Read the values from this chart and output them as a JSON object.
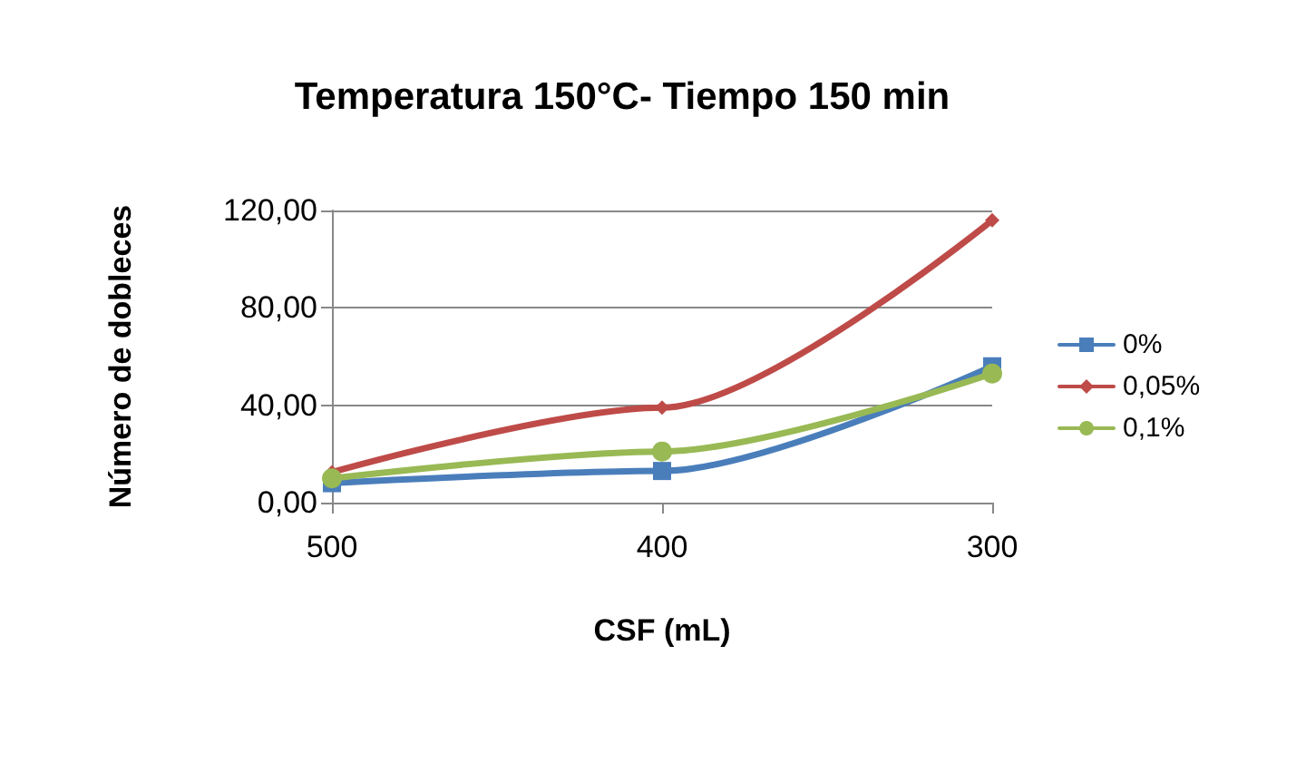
{
  "chart_data": {
    "type": "line",
    "title": "Temperatura 150°C- Tiempo 150 min",
    "xlabel": "CSF (mL)",
    "ylabel": "Número de dobleces",
    "categories": [
      "500",
      "400",
      "300"
    ],
    "series": [
      {
        "name": "0%",
        "color": "#4a7ebb",
        "marker": "square",
        "values": [
          8,
          13,
          56
        ]
      },
      {
        "name": "0,05%",
        "color": "#be4b48",
        "marker": "diamond",
        "values": [
          12.5,
          39,
          116
        ]
      },
      {
        "name": "0,1%",
        "color": "#98b954",
        "marker": "circle",
        "values": [
          10,
          21,
          53
        ]
      }
    ],
    "ylim": [
      0,
      120
    ],
    "yticks": [
      {
        "value": 0,
        "label": "0,00"
      },
      {
        "value": 40,
        "label": "40,00"
      },
      {
        "value": 80,
        "label": "80,00"
      },
      {
        "value": 120,
        "label": "120,00"
      }
    ],
    "grid": "y",
    "legend": "right",
    "line_style": "solid"
  }
}
